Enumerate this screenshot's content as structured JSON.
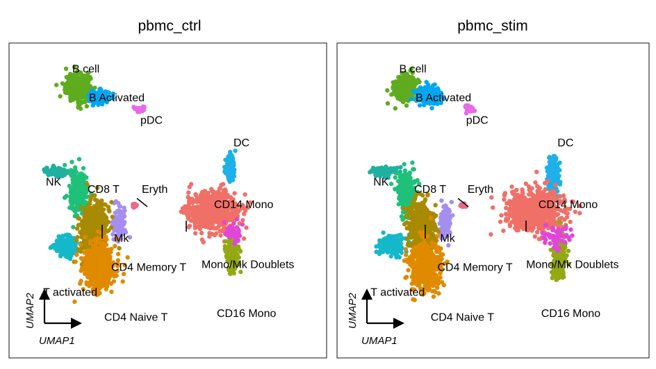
{
  "chart_data": {
    "type": "scatter",
    "xlabel": "UMAP1",
    "ylabel": "UMAP2",
    "xlim": [
      -10,
      12
    ],
    "ylim": [
      -12,
      12
    ],
    "grid": false,
    "legend": "none",
    "panels": [
      {
        "title": "pbmc_ctrl",
        "clusters": [
          {
            "name": "B cell",
            "color": "#5fac1f",
            "center": [
              -5.5,
              9.0
            ],
            "spread": [
              0.8,
              1.0
            ],
            "weight": 16
          },
          {
            "name": "B Activated",
            "color": "#00a7f0",
            "center": [
              -4.0,
              8.2
            ],
            "spread": [
              0.7,
              0.5
            ],
            "weight": 6
          },
          {
            "name": "pDC",
            "color": "#e86ae8",
            "center": [
              -1.0,
              7.3
            ],
            "spread": [
              0.3,
              0.2
            ],
            "weight": 2
          },
          {
            "name": "NK",
            "color": "#20b0a0",
            "center": [
              -7.0,
              2.3
            ],
            "spread": [
              0.8,
              0.3
            ],
            "weight": 6
          },
          {
            "name": "CD8 T",
            "color": "#1ec07a",
            "center": [
              -5.4,
              0.5
            ],
            "spread": [
              0.6,
              1.6
            ],
            "weight": 12
          },
          {
            "name": "Mk",
            "color": "#a48ff0",
            "center": [
              -2.5,
              -1.8
            ],
            "spread": [
              0.4,
              1.2
            ],
            "weight": 5
          },
          {
            "name": "T activated",
            "color": "#15b8c8",
            "center": [
              -6.4,
              -3.6
            ],
            "spread": [
              0.8,
              0.7
            ],
            "weight": 10
          },
          {
            "name": "CD4 Memory T",
            "color": "#a88a00",
            "center": [
              -4.3,
              -2.3
            ],
            "spread": [
              0.9,
              2.0
            ],
            "weight": 22
          },
          {
            "name": "CD4 Naive T",
            "color": "#e08a00",
            "center": [
              -4.0,
              -5.2
            ],
            "spread": [
              1.0,
              1.7
            ],
            "weight": 22
          },
          {
            "name": "Eryth",
            "color": "#e86a8a",
            "center": [
              -1.4,
              -0.4
            ],
            "spread": [
              0.15,
              0.15
            ],
            "weight": 1
          },
          {
            "name": "DC",
            "color": "#1eb0e8",
            "center": [
              5.5,
              2.6
            ],
            "spread": [
              0.3,
              1.0
            ],
            "weight": 5
          },
          {
            "name": "CD14 Mono",
            "color": "#f07068",
            "center": [
              4.2,
              -0.8
            ],
            "spread": [
              1.7,
              1.3
            ],
            "weight": 30
          },
          {
            "name": "CD16 Mono",
            "color": "#94a814",
            "center": [
              5.6,
              -4.2
            ],
            "spread": [
              0.4,
              1.2
            ],
            "weight": 8
          },
          {
            "name": "Mono/Mk Doublets",
            "color": "#e046d8",
            "center": [
              5.7,
              -2.6
            ],
            "spread": [
              0.6,
              0.8
            ],
            "weight": 2
          }
        ],
        "labels": [
          {
            "text": "B cell",
            "at": [
              -5.9,
              10.2
            ]
          },
          {
            "text": "B Activated",
            "at": [
              -4.7,
              7.9
            ]
          },
          {
            "text": "pDC",
            "at": [
              -1.0,
              6.1
            ]
          },
          {
            "text": "NK",
            "at": [
              -7.8,
              1.2
            ]
          },
          {
            "text": "CD8 T",
            "at": [
              -4.8,
              0.6
            ]
          },
          {
            "text": "Eryth",
            "at": [
              -0.9,
              0.6
            ]
          },
          {
            "text": "DC",
            "at": [
              5.7,
              4.3
            ]
          },
          {
            "text": "CD14 Mono",
            "at": [
              4.3,
              -0.6
            ]
          },
          {
            "text": "Mk",
            "at": [
              -2.9,
              -3.3
            ]
          },
          {
            "text": "Mono/Mk Doublets",
            "at": [
              3.4,
              -5.4
            ]
          },
          {
            "text": "CD4 Memory T",
            "at": [
              -3.1,
              -5.6
            ]
          },
          {
            "text": "T activated",
            "at": [
              -8.0,
              -7.6
            ]
          },
          {
            "text": "CD16 Mono",
            "at": [
              4.5,
              -9.3
            ]
          },
          {
            "text": "CD4 Naive T",
            "at": [
              -3.6,
              -9.6
            ]
          }
        ]
      },
      {
        "title": "pbmc_stim",
        "clusters": [
          {
            "name": "B cell",
            "color": "#5fac1f",
            "center": [
              -5.5,
              9.0
            ],
            "spread": [
              0.7,
              1.0
            ],
            "weight": 14
          },
          {
            "name": "B Activated",
            "color": "#00a7f0",
            "center": [
              -3.7,
              8.4
            ],
            "spread": [
              0.8,
              0.6
            ],
            "weight": 8
          },
          {
            "name": "pDC",
            "color": "#e86ae8",
            "center": [
              -0.8,
              7.3
            ],
            "spread": [
              0.3,
              0.2
            ],
            "weight": 2
          },
          {
            "name": "NK",
            "color": "#20b0a0",
            "center": [
              -7.0,
              2.3
            ],
            "spread": [
              0.8,
              0.3
            ],
            "weight": 6
          },
          {
            "name": "CD8 T",
            "color": "#1ec07a",
            "center": [
              -5.4,
              0.5
            ],
            "spread": [
              0.6,
              1.6
            ],
            "weight": 12
          },
          {
            "name": "Mk",
            "color": "#a48ff0",
            "center": [
              -2.5,
              -1.8
            ],
            "spread": [
              0.4,
              1.2
            ],
            "weight": 5
          },
          {
            "name": "T activated",
            "color": "#15b8c8",
            "center": [
              -6.4,
              -3.6
            ],
            "spread": [
              0.8,
              0.7
            ],
            "weight": 10
          },
          {
            "name": "CD4 Memory T",
            "color": "#a88a00",
            "center": [
              -4.3,
              -2.3
            ],
            "spread": [
              0.9,
              2.0
            ],
            "weight": 20
          },
          {
            "name": "CD4 Naive T",
            "color": "#e08a00",
            "center": [
              -4.0,
              -5.2
            ],
            "spread": [
              1.0,
              1.7
            ],
            "weight": 24
          },
          {
            "name": "Eryth",
            "color": "#e86a8a",
            "center": [
              -1.2,
              -0.4
            ],
            "spread": [
              0.15,
              0.15
            ],
            "weight": 1
          },
          {
            "name": "DC",
            "color": "#1eb0e8",
            "center": [
              5.4,
              2.0
            ],
            "spread": [
              0.4,
              1.4
            ],
            "weight": 7
          },
          {
            "name": "CD14 Mono",
            "color": "#f07068",
            "center": [
              4.0,
              -0.8
            ],
            "spread": [
              1.8,
              1.4
            ],
            "weight": 30
          },
          {
            "name": "CD16 Mono",
            "color": "#94a814",
            "center": [
              5.8,
              -4.6
            ],
            "spread": [
              0.5,
              1.5
            ],
            "weight": 8
          },
          {
            "name": "Mono/Mk Doublets",
            "color": "#e046d8",
            "center": [
              5.6,
              -2.8
            ],
            "spread": [
              0.9,
              0.8
            ],
            "weight": 3
          }
        ],
        "labels": [
          {
            "text": "B cell",
            "at": [
              -5.9,
              10.2
            ]
          },
          {
            "text": "B Activated",
            "at": [
              -4.7,
              7.9
            ]
          },
          {
            "text": "pDC",
            "at": [
              -1.0,
              6.1
            ]
          },
          {
            "text": "NK",
            "at": [
              -7.8,
              1.2
            ]
          },
          {
            "text": "CD8 T",
            "at": [
              -4.8,
              0.6
            ]
          },
          {
            "text": "Eryth",
            "at": [
              -0.9,
              0.6
            ]
          },
          {
            "text": "DC",
            "at": [
              5.7,
              4.3
            ]
          },
          {
            "text": "CD14 Mono",
            "at": [
              4.3,
              -0.6
            ]
          },
          {
            "text": "Mk",
            "at": [
              -2.9,
              -3.3
            ]
          },
          {
            "text": "Mono/Mk Doublets",
            "at": [
              3.4,
              -5.4
            ]
          },
          {
            "text": "CD4 Memory T",
            "at": [
              -3.1,
              -5.6
            ]
          },
          {
            "text": "T activated",
            "at": [
              -8.0,
              -7.6
            ]
          },
          {
            "text": "CD16 Mono",
            "at": [
              4.5,
              -9.3
            ]
          },
          {
            "text": "CD4 Naive T",
            "at": [
              -3.6,
              -9.6
            ]
          }
        ]
      }
    ]
  }
}
